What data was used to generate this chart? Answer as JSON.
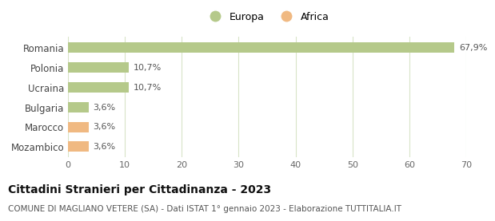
{
  "categories": [
    "Mozambico",
    "Marocco",
    "Bulgaria",
    "Ucraina",
    "Polonia",
    "Romania"
  ],
  "values": [
    3.6,
    3.6,
    3.6,
    10.7,
    10.7,
    67.9
  ],
  "labels": [
    "3,6%",
    "3,6%",
    "3,6%",
    "10,7%",
    "10,7%",
    "67,9%"
  ],
  "colors": [
    "#f0b982",
    "#f0b982",
    "#b5c98a",
    "#b5c98a",
    "#b5c98a",
    "#b5c98a"
  ],
  "continent": [
    "Africa",
    "Africa",
    "Europa",
    "Europa",
    "Europa",
    "Europa"
  ],
  "europa_color": "#b5c98a",
  "africa_color": "#f0b982",
  "xlim": [
    0,
    70
  ],
  "xticks": [
    0,
    10,
    20,
    30,
    40,
    50,
    60,
    70
  ],
  "title": "Cittadini Stranieri per Cittadinanza - 2023",
  "subtitle": "COMUNE DI MAGLIANO VETERE (SA) - Dati ISTAT 1° gennaio 2023 - Elaborazione TUTTITALIA.IT",
  "title_fontsize": 10,
  "subtitle_fontsize": 7.5,
  "label_fontsize": 8,
  "bar_height": 0.52,
  "background_color": "#ffffff",
  "grid_color": "#d8e4c8"
}
